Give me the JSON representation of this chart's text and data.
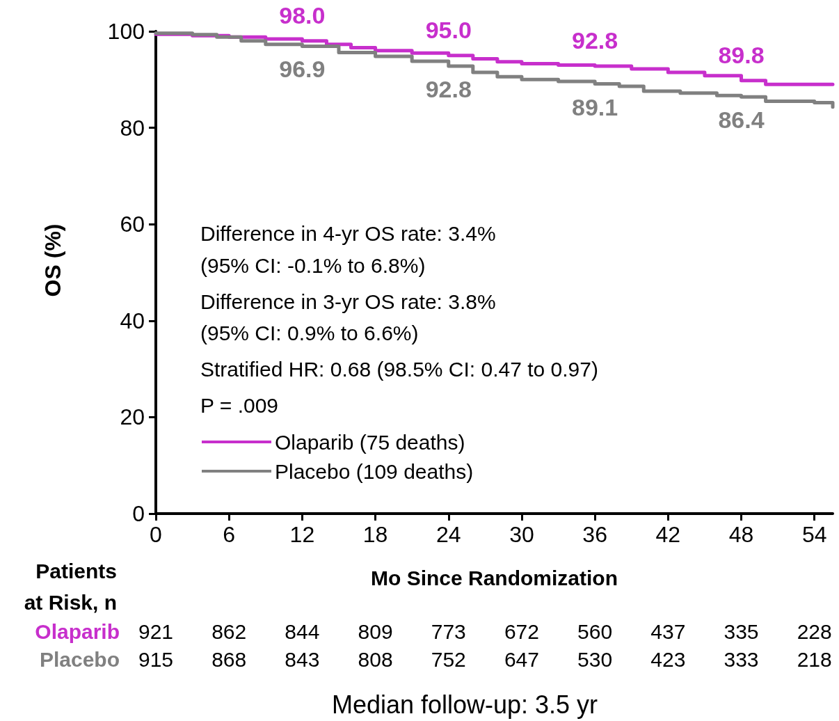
{
  "chart_data": {
    "type": "step",
    "xlabel": "Mo Since Randomization",
    "ylabel": "OS (%)",
    "xlim": [
      0,
      55.5
    ],
    "xticks": [
      0,
      6,
      12,
      18,
      24,
      30,
      36,
      42,
      48,
      54
    ],
    "ylim": [
      0,
      100
    ],
    "yticks": [
      0,
      20,
      40,
      60,
      80,
      100
    ],
    "grid": false,
    "marker": "none",
    "line_style": "solid",
    "legend": "bottom left",
    "series": [
      {
        "name": "Olaparib (75 deaths)",
        "color": "#c72fcc",
        "x": [
          0,
          3,
          6,
          9,
          12,
          14,
          16,
          18,
          21,
          24,
          26,
          28,
          30,
          33,
          36,
          39,
          42,
          45,
          48,
          50,
          55.5
        ],
        "values": [
          99.4,
          99.1,
          98.8,
          98.4,
          98.0,
          97.3,
          96.6,
          96.0,
          95.5,
          95.0,
          94.3,
          93.7,
          93.3,
          93.0,
          92.8,
          92.2,
          91.5,
          90.8,
          89.8,
          89.0,
          89.0
        ]
      },
      {
        "name": "Placebo (109 deaths)",
        "color": "#808080",
        "x": [
          0,
          3,
          5,
          7,
          9,
          12,
          15,
          18,
          21,
          24,
          26,
          28,
          30,
          33,
          36,
          38,
          40,
          43,
          46,
          48,
          50,
          54,
          55.5
        ],
        "values": [
          99.6,
          99.3,
          98.8,
          98.0,
          97.3,
          96.9,
          95.6,
          94.8,
          93.8,
          92.8,
          91.5,
          90.6,
          90.0,
          89.6,
          89.1,
          88.6,
          87.6,
          87.2,
          86.7,
          86.4,
          85.5,
          85.2,
          84.3
        ]
      }
    ],
    "annotations": [
      {
        "text": "98.0",
        "x": 12,
        "y": 98.0
      },
      {
        "text": "95.0",
        "x": 24,
        "y": 95.0
      },
      {
        "text": "92.8",
        "x": 36,
        "y": 92.8
      },
      {
        "text": "89.8",
        "x": 48,
        "y": 89.8
      },
      {
        "text": "96.9",
        "x": 12,
        "y": 96.9
      },
      {
        "text": "92.8",
        "x": 24,
        "y": 92.8
      },
      {
        "text": "89.1",
        "x": 36,
        "y": 89.1
      },
      {
        "text": "86.4",
        "x": 48,
        "y": 86.4
      },
      "Difference in 4-yr OS rate: 3.4%",
      "(95% CI: -0.1% to 6.8%)",
      "Difference in 3-yr OS rate: 3.8%",
      "(95% CI: 0.9% to 6.6%)",
      "Stratified HR: 0.68 (98.5% CI: 0.47 to 0.97)",
      "P = .009",
      "Patients",
      "at Risk, n",
      "Olaparib",
      "921 862 844 809 773 672 560 437 335 228",
      "Placebo",
      "915 868 843 808 752 647 530 423 333 218",
      "Median follow-up: 3.5 yr"
    ]
  }
}
